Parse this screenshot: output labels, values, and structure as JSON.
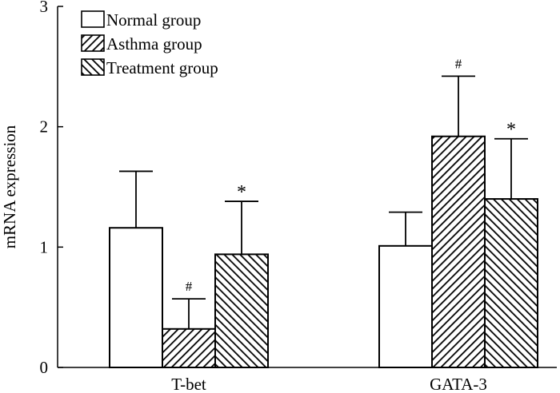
{
  "chart_data": {
    "type": "bar",
    "ylabel": "mRNA expression",
    "xlabel": "",
    "ylim": [
      0,
      3
    ],
    "yticks": [
      0,
      1,
      2,
      3
    ],
    "categories": [
      "T-bet",
      "GATA-3"
    ],
    "series": [
      {
        "name": "Normal group",
        "pattern": "none",
        "values": [
          1.16,
          1.01
        ],
        "errors": [
          0.47,
          0.28
        ],
        "annotations": [
          "",
          ""
        ]
      },
      {
        "name": "Asthma group",
        "pattern": "forward-hatch",
        "values": [
          0.32,
          1.92
        ],
        "errors": [
          0.25,
          0.5
        ],
        "annotations": [
          "#",
          "#"
        ]
      },
      {
        "name": "Treatment group",
        "pattern": "back-hatch",
        "values": [
          0.94,
          1.4
        ],
        "errors": [
          0.44,
          0.5
        ],
        "annotations": [
          "*",
          "*"
        ]
      }
    ],
    "legend_position": "top-left"
  },
  "colors": {
    "ink": "#000000",
    "background": "#ffffff"
  }
}
